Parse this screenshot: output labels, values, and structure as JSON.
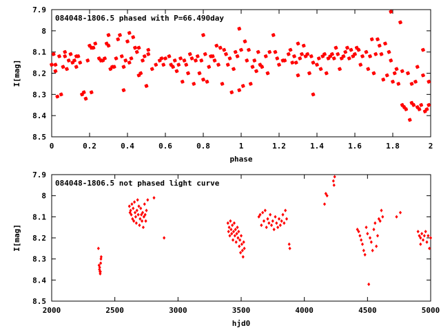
{
  "chart_data": [
    {
      "type": "scatter",
      "title": "084048-1806.5 phased with P=66.490day",
      "xlabel": "phase",
      "ylabel": "I[mag]",
      "xlim": [
        0,
        2
      ],
      "ylim": [
        8.5,
        7.9
      ],
      "y_inverted": true,
      "grid": false,
      "marker": "star",
      "color": "#ff0000",
      "x_ticks": [
        "0",
        "0.2",
        "0.4",
        "0.6",
        "0.8",
        "1",
        "1.2",
        "1.4",
        "1.6",
        "1.8",
        "2"
      ],
      "y_ticks": [
        "7.9",
        "8",
        "8.1",
        "8.2",
        "8.3",
        "8.4",
        "8.5"
      ],
      "points": [
        [
          0.0,
          8.16
        ],
        [
          0.01,
          8.11
        ],
        [
          0.02,
          8.16
        ],
        [
          0.02,
          8.19
        ],
        [
          0.03,
          8.31
        ],
        [
          0.04,
          8.12
        ],
        [
          0.05,
          8.3
        ],
        [
          0.06,
          8.17
        ],
        [
          0.07,
          8.12
        ],
        [
          0.07,
          8.1
        ],
        [
          0.08,
          8.18
        ],
        [
          0.09,
          8.14
        ],
        [
          0.1,
          8.11
        ],
        [
          0.11,
          8.15
        ],
        [
          0.12,
          8.14
        ],
        [
          0.13,
          8.12
        ],
        [
          0.13,
          8.17
        ],
        [
          0.14,
          8.12
        ],
        [
          0.15,
          8.15
        ],
        [
          0.16,
          8.3
        ],
        [
          0.17,
          8.29
        ],
        [
          0.18,
          8.32
        ],
        [
          0.19,
          8.14
        ],
        [
          0.2,
          8.07
        ],
        [
          0.21,
          8.29
        ],
        [
          0.21,
          8.08
        ],
        [
          0.22,
          8.08
        ],
        [
          0.23,
          8.06
        ],
        [
          0.25,
          8.13
        ],
        [
          0.26,
          8.14
        ],
        [
          0.27,
          8.14
        ],
        [
          0.28,
          8.13
        ],
        [
          0.29,
          8.06
        ],
        [
          0.3,
          8.07
        ],
        [
          0.3,
          8.02
        ],
        [
          0.31,
          8.18
        ],
        [
          0.32,
          8.17
        ],
        [
          0.33,
          8.17
        ],
        [
          0.34,
          8.13
        ],
        [
          0.35,
          8.04
        ],
        [
          0.36,
          8.02
        ],
        [
          0.37,
          8.12
        ],
        [
          0.38,
          8.28
        ],
        [
          0.38,
          8.17
        ],
        [
          0.39,
          8.14
        ],
        [
          0.4,
          8.05
        ],
        [
          0.41,
          8.15
        ],
        [
          0.41,
          8.01
        ],
        [
          0.42,
          8.13
        ],
        [
          0.43,
          8.03
        ],
        [
          0.44,
          8.08
        ],
        [
          0.45,
          8.1
        ],
        [
          0.46,
          8.08
        ],
        [
          0.46,
          8.21
        ],
        [
          0.47,
          8.2
        ],
        [
          0.48,
          8.14
        ],
        [
          0.49,
          8.12
        ],
        [
          0.5,
          8.26
        ],
        [
          0.51,
          8.11
        ],
        [
          0.51,
          8.09
        ],
        [
          0.53,
          8.18
        ],
        [
          0.55,
          8.16
        ],
        [
          0.57,
          8.14
        ],
        [
          0.58,
          8.13
        ],
        [
          0.59,
          8.16
        ],
        [
          0.6,
          8.13
        ],
        [
          0.62,
          8.12
        ],
        [
          0.63,
          8.16
        ],
        [
          0.64,
          8.17
        ],
        [
          0.65,
          8.14
        ],
        [
          0.66,
          8.19
        ],
        [
          0.67,
          8.16
        ],
        [
          0.68,
          8.13
        ],
        [
          0.69,
          8.24
        ],
        [
          0.7,
          8.14
        ],
        [
          0.71,
          8.16
        ],
        [
          0.72,
          8.2
        ],
        [
          0.73,
          8.11
        ],
        [
          0.74,
          8.13
        ],
        [
          0.75,
          8.25
        ],
        [
          0.76,
          8.14
        ],
        [
          0.77,
          8.12
        ],
        [
          0.78,
          8.2
        ],
        [
          0.79,
          8.14
        ],
        [
          0.8,
          8.23
        ],
        [
          0.8,
          8.02
        ],
        [
          0.81,
          8.11
        ],
        [
          0.82,
          8.24
        ],
        [
          0.83,
          8.17
        ],
        [
          0.84,
          8.12
        ],
        [
          0.85,
          8.12
        ],
        [
          0.86,
          8.14
        ],
        [
          0.87,
          8.07
        ],
        [
          0.88,
          8.16
        ],
        [
          0.89,
          8.08
        ],
        [
          0.9,
          8.25
        ],
        [
          0.91,
          8.09
        ],
        [
          0.92,
          8.11
        ],
        [
          0.93,
          8.16
        ],
        [
          0.94,
          8.13
        ],
        [
          0.95,
          8.29
        ],
        [
          0.96,
          8.18
        ],
        [
          0.97,
          8.1
        ],
        [
          0.98,
          8.12
        ],
        [
          0.99,
          7.99
        ],
        [
          0.99,
          8.28
        ],
        [
          1.0,
          8.09
        ],
        [
          1.01,
          8.26
        ],
        [
          1.02,
          8.05
        ],
        [
          1.03,
          8.14
        ],
        [
          1.04,
          8.09
        ],
        [
          1.05,
          8.25
        ],
        [
          1.06,
          8.17
        ],
        [
          1.07,
          8.14
        ],
        [
          1.08,
          8.19
        ],
        [
          1.09,
          8.1
        ],
        [
          1.1,
          8.16
        ],
        [
          1.11,
          8.17
        ],
        [
          1.13,
          8.12
        ],
        [
          1.14,
          8.2
        ],
        [
          1.15,
          8.1
        ],
        [
          1.17,
          8.02
        ],
        [
          1.18,
          8.1
        ],
        [
          1.19,
          8.13
        ],
        [
          1.2,
          8.16
        ],
        [
          1.22,
          8.14
        ],
        [
          1.23,
          8.14
        ],
        [
          1.25,
          8.11
        ],
        [
          1.26,
          8.09
        ],
        [
          1.27,
          8.15
        ],
        [
          1.28,
          8.12
        ],
        [
          1.29,
          8.15
        ],
        [
          1.3,
          8.06
        ],
        [
          1.3,
          8.21
        ],
        [
          1.31,
          8.13
        ],
        [
          1.32,
          8.11
        ],
        [
          1.33,
          8.07
        ],
        [
          1.34,
          8.12
        ],
        [
          1.35,
          8.11
        ],
        [
          1.36,
          8.2
        ],
        [
          1.37,
          8.12
        ],
        [
          1.38,
          8.15
        ],
        [
          1.38,
          8.3
        ],
        [
          1.4,
          8.16
        ],
        [
          1.41,
          8.13
        ],
        [
          1.42,
          8.18
        ],
        [
          1.43,
          8.12
        ],
        [
          1.44,
          8.11
        ],
        [
          1.45,
          8.2
        ],
        [
          1.46,
          8.13
        ],
        [
          1.47,
          8.12
        ],
        [
          1.48,
          8.11
        ],
        [
          1.49,
          8.13
        ],
        [
          1.5,
          8.08
        ],
        [
          1.51,
          8.11
        ],
        [
          1.52,
          8.18
        ],
        [
          1.53,
          8.13
        ],
        [
          1.54,
          8.12
        ],
        [
          1.55,
          8.1
        ],
        [
          1.56,
          8.08
        ],
        [
          1.57,
          8.13
        ],
        [
          1.58,
          8.09
        ],
        [
          1.59,
          8.12
        ],
        [
          1.6,
          8.11
        ],
        [
          1.61,
          8.08
        ],
        [
          1.62,
          8.09
        ],
        [
          1.63,
          8.16
        ],
        [
          1.64,
          8.12
        ],
        [
          1.66,
          8.1
        ],
        [
          1.67,
          8.18
        ],
        [
          1.68,
          8.12
        ],
        [
          1.69,
          8.04
        ],
        [
          1.7,
          8.2
        ],
        [
          1.71,
          8.11
        ],
        [
          1.72,
          8.04
        ],
        [
          1.73,
          8.07
        ],
        [
          1.74,
          8.11
        ],
        [
          1.75,
          8.23
        ],
        [
          1.76,
          8.06
        ],
        [
          1.77,
          8.21
        ],
        [
          1.78,
          8.1
        ],
        [
          1.79,
          8.14
        ],
        [
          1.79,
          7.91
        ],
        [
          1.8,
          8.24
        ],
        [
          1.81,
          8.2
        ],
        [
          1.82,
          8.18
        ],
        [
          1.83,
          8.25
        ],
        [
          1.84,
          7.96
        ],
        [
          1.85,
          8.35
        ],
        [
          1.85,
          8.19
        ],
        [
          1.86,
          8.36
        ],
        [
          1.87,
          8.37
        ],
        [
          1.88,
          8.2
        ],
        [
          1.89,
          8.42
        ],
        [
          1.9,
          8.25
        ],
        [
          1.9,
          8.34
        ],
        [
          1.91,
          8.35
        ],
        [
          1.92,
          8.24
        ],
        [
          1.93,
          8.36
        ],
        [
          1.94,
          8.37
        ],
        [
          1.95,
          8.35
        ],
        [
          1.96,
          8.09
        ],
        [
          1.97,
          8.38
        ],
        [
          1.98,
          8.37
        ],
        [
          1.99,
          8.24
        ],
        [
          1.99,
          8.35
        ],
        [
          1.93,
          8.17
        ],
        [
          1.96,
          8.21
        ]
      ]
    },
    {
      "type": "scatter",
      "title": "084048-1806.5 not phased light curve",
      "xlabel": "hjd0",
      "ylabel": "I[mag]",
      "xlim": [
        2000,
        5000
      ],
      "ylim": [
        8.5,
        7.9
      ],
      "y_inverted": true,
      "grid": false,
      "marker": "diamond",
      "color": "#ff0000",
      "x_ticks": [
        "2000",
        "2500",
        "3000",
        "3500",
        "4000",
        "4500",
        "5000"
      ],
      "y_ticks": [
        "7.9",
        "8",
        "8.1",
        "8.2",
        "8.3",
        "8.4",
        "8.5"
      ],
      "points": [
        [
          2370,
          8.25
        ],
        [
          2375,
          8.33
        ],
        [
          2378,
          8.35
        ],
        [
          2380,
          8.34
        ],
        [
          2382,
          8.36
        ],
        [
          2384,
          8.37
        ],
        [
          2386,
          8.36
        ],
        [
          2388,
          8.32
        ],
        [
          2390,
          8.3
        ],
        [
          2392,
          8.29
        ],
        [
          2615,
          8.05
        ],
        [
          2620,
          8.08
        ],
        [
          2625,
          8.07
        ],
        [
          2630,
          8.09
        ],
        [
          2635,
          8.04
        ],
        [
          2640,
          8.11
        ],
        [
          2645,
          8.06
        ],
        [
          2650,
          8.12
        ],
        [
          2655,
          8.03
        ],
        [
          2660,
          8.08
        ],
        [
          2665,
          8.1
        ],
        [
          2670,
          8.13
        ],
        [
          2675,
          8.07
        ],
        [
          2680,
          8.02
        ],
        [
          2685,
          8.09
        ],
        [
          2690,
          8.05
        ],
        [
          2695,
          8.14
        ],
        [
          2700,
          8.11
        ],
        [
          2705,
          8.06
        ],
        [
          2710,
          8.09
        ],
        [
          2715,
          8.12
        ],
        [
          2720,
          8.08
        ],
        [
          2725,
          8.15
        ],
        [
          2730,
          8.1
        ],
        [
          2735,
          8.04
        ],
        [
          2740,
          8.09
        ],
        [
          2745,
          8.12
        ],
        [
          2750,
          8.07
        ],
        [
          2760,
          8.02
        ],
        [
          2810,
          8.01
        ],
        [
          2890,
          8.2
        ],
        [
          3395,
          8.13
        ],
        [
          3400,
          8.17
        ],
        [
          3405,
          8.15
        ],
        [
          3410,
          8.19
        ],
        [
          3415,
          8.12
        ],
        [
          3420,
          8.16
        ],
        [
          3425,
          8.18
        ],
        [
          3430,
          8.14
        ],
        [
          3435,
          8.21
        ],
        [
          3440,
          8.17
        ],
        [
          3445,
          8.13
        ],
        [
          3450,
          8.19
        ],
        [
          3455,
          8.16
        ],
        [
          3460,
          8.22
        ],
        [
          3465,
          8.18
        ],
        [
          3470,
          8.15
        ],
        [
          3475,
          8.2
        ],
        [
          3480,
          8.17
        ],
        [
          3485,
          8.24
        ],
        [
          3490,
          8.21
        ],
        [
          3495,
          8.27
        ],
        [
          3500,
          8.19
        ],
        [
          3505,
          8.23
        ],
        [
          3510,
          8.26
        ],
        [
          3515,
          8.29
        ],
        [
          3520,
          8.22
        ],
        [
          3525,
          8.25
        ],
        [
          3640,
          8.1
        ],
        [
          3650,
          8.09
        ],
        [
          3660,
          8.14
        ],
        [
          3670,
          8.08
        ],
        [
          3680,
          8.12
        ],
        [
          3690,
          8.07
        ],
        [
          3700,
          8.15
        ],
        [
          3710,
          8.11
        ],
        [
          3720,
          8.13
        ],
        [
          3730,
          8.09
        ],
        [
          3740,
          8.14
        ],
        [
          3750,
          8.12
        ],
        [
          3760,
          8.16
        ],
        [
          3770,
          8.1
        ],
        [
          3780,
          8.13
        ],
        [
          3790,
          8.15
        ],
        [
          3800,
          8.11
        ],
        [
          3810,
          8.14
        ],
        [
          3820,
          8.12
        ],
        [
          3830,
          8.09
        ],
        [
          3840,
          8.13
        ],
        [
          3850,
          8.07
        ],
        [
          3860,
          8.11
        ],
        [
          3880,
          8.23
        ],
        [
          3885,
          8.25
        ],
        [
          4160,
          8.04
        ],
        [
          4170,
          7.99
        ],
        [
          4180,
          8.0
        ],
        [
          4230,
          7.93
        ],
        [
          4235,
          7.95
        ],
        [
          4240,
          7.91
        ],
        [
          4420,
          8.16
        ],
        [
          4430,
          8.17
        ],
        [
          4440,
          8.19
        ],
        [
          4450,
          8.21
        ],
        [
          4460,
          8.23
        ],
        [
          4470,
          8.26
        ],
        [
          4480,
          8.28
        ],
        [
          4490,
          8.15
        ],
        [
          4500,
          8.18
        ],
        [
          4510,
          8.42
        ],
        [
          4520,
          8.2
        ],
        [
          4530,
          8.22
        ],
        [
          4540,
          8.26
        ],
        [
          4550,
          8.16
        ],
        [
          4560,
          8.13
        ],
        [
          4570,
          8.24
        ],
        [
          4580,
          8.19
        ],
        [
          4590,
          8.11
        ],
        [
          4600,
          8.12
        ],
        [
          4610,
          8.07
        ],
        [
          4620,
          8.1
        ],
        [
          4730,
          8.1
        ],
        [
          4760,
          8.08
        ],
        [
          4900,
          8.17
        ],
        [
          4910,
          8.19
        ],
        [
          4920,
          8.2
        ],
        [
          4930,
          8.18
        ],
        [
          4940,
          8.21
        ],
        [
          4950,
          8.19
        ],
        [
          4960,
          8.17
        ],
        [
          4970,
          8.22
        ],
        [
          4980,
          8.19
        ],
        [
          4990,
          8.25
        ],
        [
          5000,
          8.2
        ],
        [
          4920,
          8.23
        ]
      ]
    }
  ]
}
